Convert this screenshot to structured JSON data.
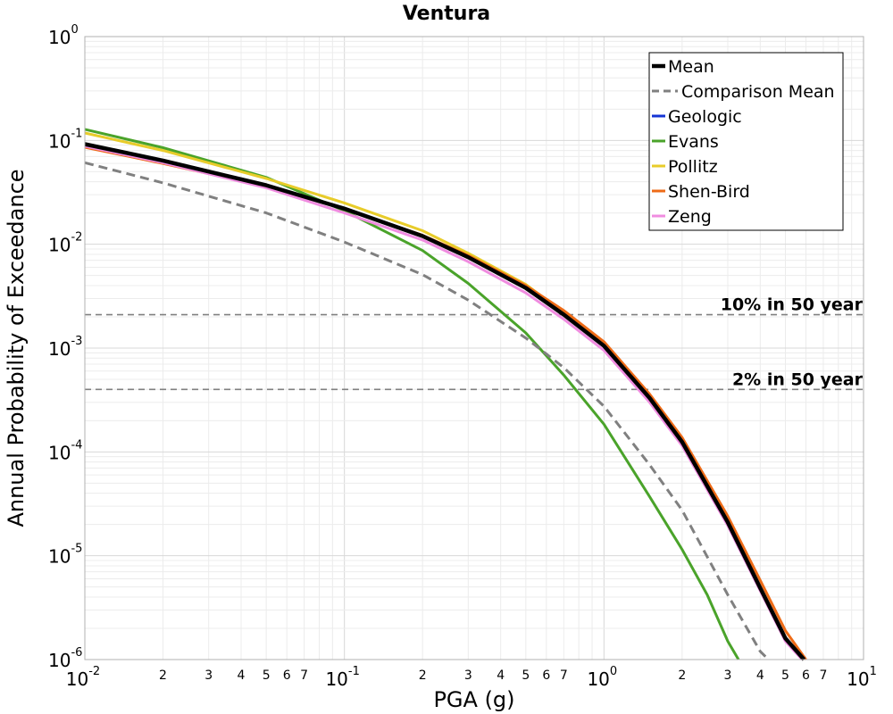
{
  "chart_data": {
    "type": "line",
    "title": "Ventura",
    "xlabel": "PGA (g)",
    "ylabel": "Annual Probability of Exceedance",
    "x_scale": "log",
    "y_scale": "log",
    "xlim": [
      0.01,
      10
    ],
    "ylim": [
      1e-06,
      1
    ],
    "grid": true,
    "legend_position": "top-right",
    "x_major_ticks": [
      {
        "value": 0.01,
        "base": "10",
        "exp": "-2"
      },
      {
        "value": 0.1,
        "base": "10",
        "exp": "-1"
      },
      {
        "value": 1,
        "base": "10",
        "exp": "0"
      },
      {
        "value": 10,
        "base": "10",
        "exp": "1"
      }
    ],
    "y_major_ticks": [
      {
        "value": 1,
        "base": "10",
        "exp": "0"
      },
      {
        "value": 0.1,
        "base": "10",
        "exp": "-1"
      },
      {
        "value": 0.01,
        "base": "10",
        "exp": "-2"
      },
      {
        "value": 0.001,
        "base": "10",
        "exp": "-3"
      },
      {
        "value": 0.0001,
        "base": "10",
        "exp": "-4"
      },
      {
        "value": 1e-05,
        "base": "10",
        "exp": "-5"
      },
      {
        "value": 1e-06,
        "base": "10",
        "exp": "-6"
      }
    ],
    "x_minor_tick_labels": [
      "2",
      "3",
      "4",
      "5",
      "6",
      "7"
    ],
    "reference_lines": [
      {
        "label": "10% in 50 year",
        "y": 0.0021
      },
      {
        "label": "2% in 50 year",
        "y": 0.0004
      }
    ],
    "series": [
      {
        "name": "Geologic",
        "color": "#1434d4",
        "dash": false,
        "x": [
          0.01,
          0.02,
          0.05,
          0.1,
          0.2,
          0.3,
          0.5,
          0.7,
          1.0,
          1.5,
          2.0,
          3.0,
          4.0,
          5.0,
          5.9
        ],
        "y": [
          0.09,
          0.063,
          0.037,
          0.022,
          0.012,
          0.0075,
          0.0038,
          0.0021,
          0.00105,
          0.00033,
          0.000125,
          2.05e-05,
          4.8e-06,
          1.6e-06,
          1e-06
        ]
      },
      {
        "name": "Evans",
        "color": "#4aa32a",
        "dash": false,
        "x": [
          0.01,
          0.02,
          0.05,
          0.1,
          0.2,
          0.3,
          0.5,
          0.7,
          1.0,
          1.5,
          2.0,
          2.5,
          3.0,
          3.3
        ],
        "y": [
          0.128,
          0.085,
          0.044,
          0.021,
          0.0087,
          0.0042,
          0.0014,
          0.00055,
          0.000185,
          3.7e-05,
          1.15e-05,
          4.2e-06,
          1.5e-06,
          1e-06
        ]
      },
      {
        "name": "Pollitz",
        "color": "#e8cc2a",
        "dash": false,
        "x": [
          0.01,
          0.02,
          0.05,
          0.1,
          0.2,
          0.3,
          0.5,
          0.7,
          1.0,
          1.5,
          2.0,
          3.0,
          4.0,
          5.0,
          5.9
        ],
        "y": [
          0.118,
          0.08,
          0.043,
          0.025,
          0.0135,
          0.0082,
          0.0041,
          0.0022,
          0.00108,
          0.00034,
          0.000128,
          2.1e-05,
          4.9e-06,
          1.6e-06,
          1e-06
        ]
      },
      {
        "name": "Shen-Bird",
        "color": "#ee6b17",
        "dash": false,
        "x": [
          0.01,
          0.02,
          0.05,
          0.1,
          0.2,
          0.3,
          0.5,
          0.7,
          1.0,
          1.5,
          2.0,
          3.0,
          4.0,
          5.0,
          6.0
        ],
        "y": [
          0.086,
          0.06,
          0.036,
          0.022,
          0.0122,
          0.0078,
          0.004,
          0.0023,
          0.00115,
          0.00036,
          0.000138,
          2.4e-05,
          5.8e-06,
          1.9e-06,
          1e-06
        ]
      },
      {
        "name": "Zeng",
        "color": "#f08ce0",
        "dash": false,
        "x": [
          0.01,
          0.02,
          0.05,
          0.1,
          0.2,
          0.3,
          0.5,
          0.7,
          1.0,
          1.5,
          2.0,
          3.0,
          4.0,
          5.0,
          5.8
        ],
        "y": [
          0.088,
          0.061,
          0.035,
          0.02,
          0.011,
          0.0068,
          0.0034,
          0.0019,
          0.00095,
          0.0003,
          0.000115,
          1.95e-05,
          4.6e-06,
          1.5e-06,
          1e-06
        ]
      },
      {
        "name": "Comparison Mean",
        "color": "#808080",
        "dash": true,
        "x": [
          0.01,
          0.02,
          0.05,
          0.1,
          0.2,
          0.3,
          0.5,
          0.7,
          1.0,
          1.5,
          2.0,
          3.0,
          4.0,
          4.3
        ],
        "y": [
          0.061,
          0.039,
          0.02,
          0.0105,
          0.0051,
          0.0029,
          0.00125,
          0.00065,
          0.000275,
          7.5e-05,
          2.75e-05,
          4.2e-06,
          1.2e-06,
          1e-06
        ]
      },
      {
        "name": "Mean",
        "color": "#000000",
        "dash": false,
        "x": [
          0.01,
          0.02,
          0.05,
          0.1,
          0.2,
          0.3,
          0.5,
          0.7,
          1.0,
          1.5,
          2.0,
          3.0,
          4.0,
          5.0,
          5.9
        ],
        "y": [
          0.092,
          0.064,
          0.037,
          0.022,
          0.012,
          0.0075,
          0.0038,
          0.0021,
          0.00105,
          0.00033,
          0.000125,
          2.1e-05,
          4.9e-06,
          1.6e-06,
          1e-06
        ]
      }
    ],
    "legend_order": [
      "Mean",
      "Comparison Mean",
      "Geologic",
      "Evans",
      "Pollitz",
      "Shen-Bird",
      "Zeng"
    ]
  }
}
